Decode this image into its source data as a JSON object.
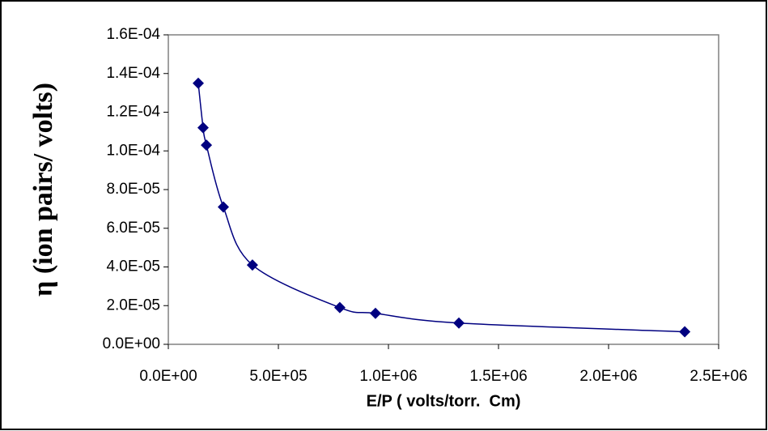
{
  "chart_data": {
    "type": "scatter",
    "x_label": "E/P ( volts/torr.  Cm)",
    "y_label": "η (ion pairs/ volts)",
    "smooth_line": true,
    "series": [
      {
        "name": "η",
        "color": "#000080",
        "x": [
          136000,
          158000,
          173000,
          250000,
          382000,
          779000,
          941000,
          1320000,
          2346000
        ],
        "values": [
          0.000135,
          0.000112,
          0.000103,
          7.1e-05,
          4.1e-05,
          1.9e-05,
          1.6e-05,
          1.1e-05,
          6.5e-06
        ]
      }
    ],
    "xlim": [
      0,
      2500000
    ],
    "xticks": [
      {
        "value": 0,
        "label": "0.0E+00"
      },
      {
        "value": 500000,
        "label": "5.0E+05"
      },
      {
        "value": 1000000,
        "label": "1.0E+06"
      },
      {
        "value": 1500000,
        "label": "1.5E+06"
      },
      {
        "value": 2000000,
        "label": "2.0E+06"
      },
      {
        "value": 2500000,
        "label": "2.5E+06"
      }
    ],
    "ylim": [
      0,
      0.00016
    ],
    "yticks": [
      {
        "value": 0,
        "label": "0.0E+00"
      },
      {
        "value": 2e-05,
        "label": "2.0E-05"
      },
      {
        "value": 4e-05,
        "label": "4.0E-05"
      },
      {
        "value": 6e-05,
        "label": "6.0E-05"
      },
      {
        "value": 8e-05,
        "label": "8.0E-05"
      },
      {
        "value": 0.0001,
        "label": "1.0E-04"
      },
      {
        "value": 0.00012,
        "label": "1.2E-04"
      },
      {
        "value": 0.00014,
        "label": "1.4E-04"
      },
      {
        "value": 0.00016,
        "label": "1.6E-04"
      }
    ],
    "grid": false
  }
}
